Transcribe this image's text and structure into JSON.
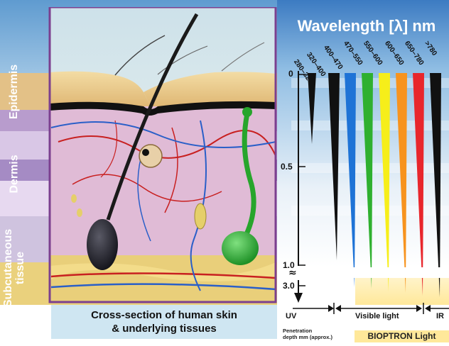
{
  "title": "Wavelength [λ] nm",
  "layers": {
    "epidermis": "Epidermis",
    "dermis": "Dermis",
    "subcutaneous": [
      "Subcutaneous",
      "tissue"
    ]
  },
  "caption": [
    "Cross-section of human skin",
    "& underlying tissues"
  ],
  "wavelengths": [
    "280–320",
    "320–400",
    "400–470",
    "470–550",
    "550–600",
    "600–650",
    "650–780",
    ">780"
  ],
  "depth_scale": [
    "0",
    "0.5",
    "1.0",
    "3.0"
  ],
  "bands": {
    "uv": "UV",
    "visible": "Visible light",
    "ir": "IR"
  },
  "penetration_label": [
    "Penetration",
    "depth mm (approx.)"
  ],
  "product_label": "BIOPTRON Light",
  "colors": {
    "blue_band": "#4f8ec9",
    "purple_band": "#a58bc4",
    "epidermis": "#e3c187",
    "dermis": "#e6c6dc",
    "subcutaneous": "#f0d890",
    "frame": "#7b3f8f",
    "wedges": [
      "#111111",
      "#111111",
      "#1e73d6",
      "#2fb02f",
      "#f6ee1a",
      "#f7931e",
      "#e8262c",
      "#111111"
    ]
  }
}
